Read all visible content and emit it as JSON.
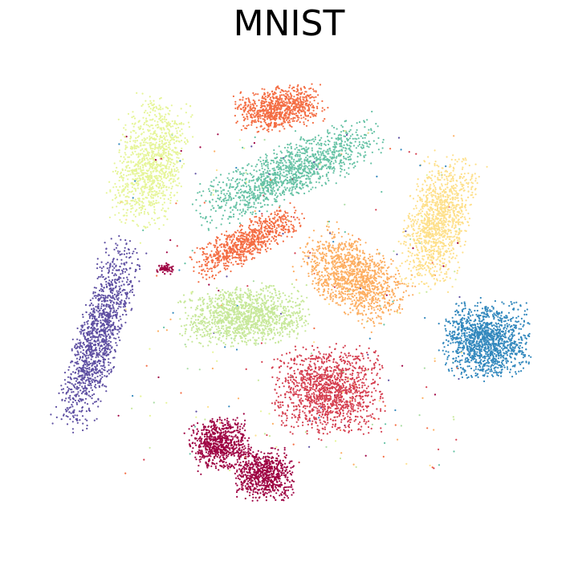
{
  "chart_data": {
    "type": "scatter",
    "title": "MNIST",
    "xlabel": "",
    "ylabel": "",
    "axes_visible": false,
    "grid": false,
    "legend": "none",
    "xlim": [
      -52,
      52
    ],
    "ylim": [
      -52,
      52
    ],
    "series": [
      {
        "color": "#9e0142",
        "clusters": [
          {
            "cx": -14,
            "cy": -29,
            "sx": 5,
            "sy": 4.5,
            "rot": 0.2,
            "n": 700
          },
          {
            "cx": -5,
            "cy": -35,
            "sx": 5,
            "sy": 4.5,
            "rot": 0,
            "n": 700
          },
          {
            "cx": -25,
            "cy": 6.5,
            "sx": 1.5,
            "sy": 1,
            "rot": 0,
            "n": 60
          }
        ]
      },
      {
        "color": "#d53e4f",
        "clusters": [
          {
            "cx": 8,
            "cy": -18,
            "sx": 9.5,
            "sy": 7.5,
            "rot": 0,
            "n": 1300
          }
        ]
      },
      {
        "color": "#f46d43",
        "clusters": [
          {
            "cx": -2,
            "cy": 39,
            "sx": 7.5,
            "sy": 3.8,
            "rot": 0.15,
            "n": 800
          },
          {
            "cx": -8.5,
            "cy": 12,
            "sx": 10.5,
            "sy": 3.2,
            "rot": 0.5,
            "n": 800
          }
        ]
      },
      {
        "color": "#fdae61",
        "clusters": [
          {
            "cx": 13,
            "cy": 5,
            "sx": 10,
            "sy": 6,
            "rot": -0.6,
            "n": 1200
          }
        ]
      },
      {
        "color": "#fee08b",
        "clusters": [
          {
            "cx": 30,
            "cy": 16,
            "sx": 5.5,
            "sy": 11.5,
            "rot": -0.25,
            "n": 1200
          }
        ]
      },
      {
        "color": "#e6f598",
        "clusters": [
          {
            "cx": -28,
            "cy": 28,
            "sx": 6,
            "sy": 11,
            "rot": -0.25,
            "n": 1100
          }
        ]
      },
      {
        "color": "#abdda4",
        "clusters": []
      },
      {
        "color": "#c7e89a",
        "clusters": [
          {
            "cx": -9,
            "cy": -3,
            "sx": 11,
            "sy": 5,
            "rot": 0.05,
            "n": 1300
          }
        ]
      },
      {
        "color": "#66c2a5",
        "clusters": [
          {
            "cx": 0,
            "cy": 26,
            "sx": 17,
            "sy": 4.5,
            "rot": 0.42,
            "n": 1300
          }
        ]
      },
      {
        "color": "#3288bd",
        "clusters": [
          {
            "cx": 40,
            "cy": -8,
            "sx": 7.5,
            "sy": 6.5,
            "rot": 0,
            "n": 1300
          }
        ]
      },
      {
        "color": "#5e4fa2",
        "clusters": [
          {
            "cx": -38.5,
            "cy": -7,
            "sx": 4,
            "sy": 17,
            "rot": -0.3,
            "n": 1300
          }
        ]
      }
    ]
  }
}
